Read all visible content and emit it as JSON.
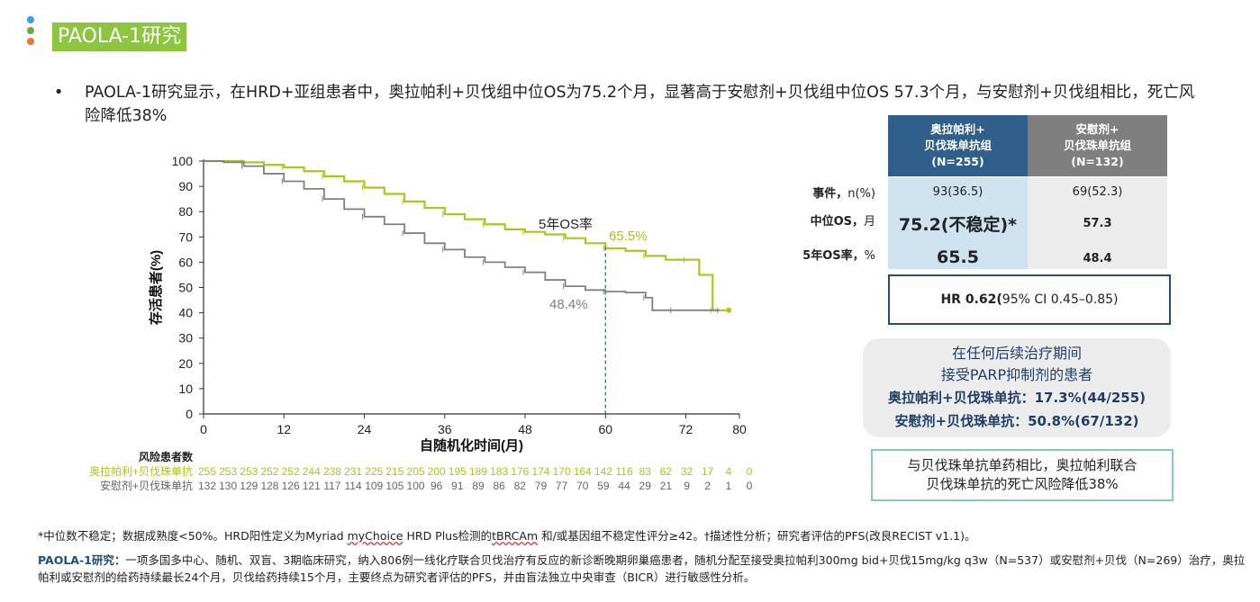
{
  "header": {
    "title": "PAOLA-1研究",
    "dot_colors": [
      "#3aa0e0",
      "#6aa84f",
      "#e8743b"
    ]
  },
  "bullet": {
    "marker": "•",
    "text": "PAOLA-1研究显示，在HRD+亚组患者中，奥拉帕利+贝伐组中位OS为75.2个月，显著高于安慰剂+贝伐组中位OS 57.3个月，与安慰剂+贝伐组相比，死亡风险降低38%"
  },
  "chart_data": {
    "type": "line",
    "step": true,
    "xlabel": "自随机化时间(月)",
    "ylabel": "存活患者(%)",
    "xlim": [
      0,
      80
    ],
    "ylim": [
      0,
      100
    ],
    "xticks": [
      0,
      12,
      24,
      36,
      48,
      60,
      72,
      80
    ],
    "yticks": [
      0,
      10,
      20,
      30,
      40,
      50,
      60,
      70,
      80,
      90,
      100
    ],
    "grid": false,
    "reference_line_x": 60,
    "annotations": {
      "label": "5年OS率",
      "olaparib_value": "65.5%",
      "placebo_value": "48.4%"
    },
    "series": [
      {
        "name": "奥拉帕利+贝伐珠单抗",
        "color": "#a8c81e",
        "points": [
          [
            0,
            100
          ],
          [
            3,
            100
          ],
          [
            6,
            99.5
          ],
          [
            9,
            98.5
          ],
          [
            12,
            97.5
          ],
          [
            15,
            96
          ],
          [
            18,
            94
          ],
          [
            21,
            92
          ],
          [
            24,
            89.5
          ],
          [
            27,
            87
          ],
          [
            30,
            84
          ],
          [
            33,
            81.5
          ],
          [
            36,
            79
          ],
          [
            39,
            77
          ],
          [
            42,
            75
          ],
          [
            45,
            73
          ],
          [
            48,
            72
          ],
          [
            51,
            71
          ],
          [
            54,
            69.5
          ],
          [
            57,
            67.5
          ],
          [
            60,
            65.5
          ],
          [
            63,
            64.5
          ],
          [
            66,
            62.5
          ],
          [
            69,
            61
          ],
          [
            72,
            61
          ],
          [
            74,
            55
          ],
          [
            76,
            41
          ],
          [
            78,
            41
          ]
        ]
      },
      {
        "name": "安慰剂+贝伐珠单抗",
        "color": "#808080",
        "points": [
          [
            0,
            100
          ],
          [
            3,
            99.5
          ],
          [
            6,
            98
          ],
          [
            9,
            95
          ],
          [
            12,
            92
          ],
          [
            15,
            89
          ],
          [
            18,
            85
          ],
          [
            21,
            81
          ],
          [
            24,
            78
          ],
          [
            27,
            75
          ],
          [
            30,
            71.5
          ],
          [
            33,
            67.5
          ],
          [
            36,
            65
          ],
          [
            39,
            62
          ],
          [
            42,
            60
          ],
          [
            45,
            58
          ],
          [
            48,
            56
          ],
          [
            51,
            53
          ],
          [
            54,
            50.5
          ],
          [
            57,
            49
          ],
          [
            60,
            48.4
          ],
          [
            63,
            48
          ],
          [
            66,
            46
          ],
          [
            67,
            41
          ],
          [
            70,
            41
          ],
          [
            75,
            41
          ],
          [
            77,
            41
          ]
        ]
      }
    ],
    "risk_table": {
      "title": "风险患者数",
      "rows": [
        {
          "label": "奥拉帕利+贝伐珠单抗",
          "color": "#a8c81e",
          "values": [
            "255",
            "253",
            "253",
            "252",
            "252",
            "244",
            "238",
            "231",
            "225",
            "215",
            "205",
            "200",
            "195",
            "189",
            "183",
            "176",
            "174",
            "170",
            "164",
            "142",
            "116",
            "83",
            "62",
            "32",
            "17",
            "4",
            "0"
          ]
        },
        {
          "label": "安慰剂+贝伐珠单抗",
          "color": "#666666",
          "values": [
            "132",
            "130",
            "129",
            "128",
            "126",
            "121",
            "117",
            "114",
            "109",
            "105",
            "100",
            "96",
            "91",
            "89",
            "86",
            "82",
            "79",
            "77",
            "70",
            "59",
            "44",
            "29",
            "21",
            "9",
            "2",
            "1",
            "0"
          ]
        }
      ]
    }
  },
  "table": {
    "header_olaparib": [
      "奥拉帕利+",
      "贝伐珠单抗组",
      "(N=255)"
    ],
    "header_placebo": [
      "安慰剂+",
      "贝伐珠单抗组",
      "(N=132)"
    ],
    "header_olaparib_color": "#2f5f8a",
    "header_placebo_color": "#7f7f7f",
    "rows": [
      {
        "label": "事件，",
        "unit": "n(%)",
        "olaparib": "93(36.5)",
        "placebo": "69(52.3)"
      },
      {
        "label": "中位OS，",
        "unit": "月",
        "olaparib": "75.2(不稳定)*",
        "placebo": "57.3"
      },
      {
        "label": "5年OS率，",
        "unit": "%",
        "olaparib": "65.5",
        "placebo": "48.4"
      }
    ],
    "hr_bold": "HR 0.62(",
    "hr_rest": "95% CI 0.45–0.85)"
  },
  "parp_box": {
    "line1": "在任何后续治疗期间",
    "line2": "接受PARP抑制剂的患者",
    "line3": "奥拉帕利+贝伐珠单抗：17.3%(44/255)",
    "line4": "安慰剂+贝伐珠单抗：50.8%(67/132)"
  },
  "mono_box": {
    "line1": "与贝伐珠单抗单药相比，奥拉帕利联合",
    "line2": "贝伐珠单抗的死亡风险降低38%"
  },
  "footnote": {
    "part1": "*中位数不稳定；数据成熟度<50%。HRD阳性定义为Myriad ",
    "wavy": "myChoice",
    "part2": " HRD Plus检测的",
    "wavy2": "tBRCAm",
    "part3": " 和/或基因组不稳定性评分≥42。†描述性分析；研究者评估的PFS(改良RECIST v1.1)。"
  },
  "study": {
    "label": "PAOLA-1研究：",
    "text": "一项多国多中心、随机、双盲、3期临床研究，纳入806例一线化疗联合贝伐治疗有反应的新诊断晚期卵巢癌患者，随机分配至接受奥拉帕利300mg bid+贝伐15mg/kg q3w（N=537）或安慰剂+贝伐（N=269）治疗，奥拉帕利或安慰剂的给药持续最长24个月，贝伐给药持续15个月，主要终点为研究者评估的PFS，并由盲法独立中央审查（BICR）进行敏感性分析。"
  }
}
